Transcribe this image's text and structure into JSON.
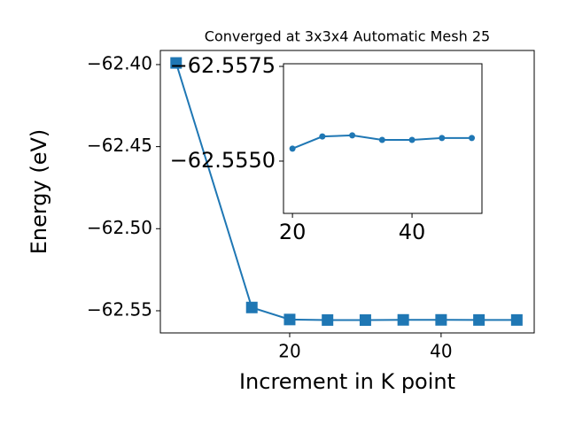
{
  "chart_data": [
    {
      "type": "line",
      "title": "Converged at 3x3x4 Automatic Mesh 25",
      "x_label": "Increment in K point",
      "y_label": "Energy (eV)",
      "x": [
        5,
        15,
        20,
        25,
        30,
        35,
        40,
        45,
        50
      ],
      "values": [
        -62.399,
        -62.548,
        -62.55533,
        -62.55565,
        -62.55568,
        -62.55556,
        -62.55556,
        -62.55561,
        -62.55561
      ],
      "color": "#1f77b4",
      "marker": "square",
      "xlim": [
        2.92,
        52.3
      ],
      "xticks": [
        20,
        40
      ],
      "ylim": [
        -62.5635,
        -62.3914
      ],
      "yticks": [
        {
          "value": -62.55,
          "label": "−62.55"
        },
        {
          "value": -62.5,
          "label": "−62.50"
        },
        {
          "value": -62.45,
          "label": "−62.45"
        },
        {
          "value": -62.4,
          "label": "−62.40"
        }
      ]
    },
    {
      "type": "line",
      "x": [
        20,
        25,
        30,
        35,
        40,
        45,
        50
      ],
      "values": [
        -62.55533,
        -62.55565,
        -62.55568,
        -62.55556,
        -62.55556,
        -62.55561,
        -62.55561
      ],
      "color": "#1f77b4",
      "marker": "circle",
      "xlim": [
        18.5,
        51.7
      ],
      "xticks": [
        20,
        40
      ],
      "ylim": [
        -62.55757,
        -62.55362
      ],
      "y_inverted": true,
      "yticks": [
        {
          "value": -62.5575,
          "label": "−62.5575"
        },
        {
          "value": -62.555,
          "label": "−62.5550"
        }
      ]
    }
  ]
}
